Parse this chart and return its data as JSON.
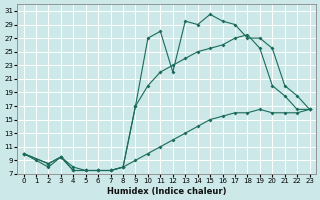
{
  "xlabel": "Humidex (Indice chaleur)",
  "bg_color": "#cce8e8",
  "grid_color": "#b0d8d8",
  "line_color": "#1a6b5a",
  "xlim": [
    -0.5,
    23.5
  ],
  "ylim": [
    7,
    32
  ],
  "yticks": [
    7,
    9,
    11,
    13,
    15,
    17,
    19,
    21,
    23,
    25,
    27,
    29,
    31
  ],
  "xticks": [
    0,
    1,
    2,
    3,
    4,
    5,
    6,
    7,
    8,
    9,
    10,
    11,
    12,
    13,
    14,
    15,
    16,
    17,
    18,
    19,
    20,
    21,
    22,
    23
  ],
  "line1_x": [
    0,
    1,
    2,
    3,
    4,
    5,
    6,
    7,
    8,
    9,
    10,
    11,
    12,
    13,
    14,
    15,
    16,
    17,
    18,
    19,
    20,
    21,
    22,
    23
  ],
  "line1_y": [
    10,
    9,
    8,
    9.5,
    8,
    7.5,
    7.5,
    7.5,
    8,
    17,
    27,
    28,
    22,
    29.5,
    29,
    30.5,
    29.5,
    29,
    27,
    27,
    25.5,
    20,
    18.5,
    16.5
  ],
  "line2_x": [
    0,
    2,
    3,
    4,
    5,
    6,
    7,
    8,
    9,
    10,
    11,
    12,
    13,
    14,
    15,
    16,
    17,
    18,
    19,
    20,
    21,
    22,
    23
  ],
  "line2_y": [
    10,
    8.5,
    9.5,
    7.5,
    7.5,
    7.5,
    7.5,
    8,
    9,
    10,
    11,
    12,
    13,
    14,
    15,
    15.5,
    16,
    16,
    16.5,
    16,
    16,
    16,
    16.5
  ],
  "line3_x": [
    0,
    2,
    3,
    4,
    5,
    6,
    7,
    8,
    9,
    10,
    11,
    12,
    13,
    14,
    15,
    16,
    17,
    18,
    19,
    20,
    21,
    22,
    23
  ],
  "line3_y": [
    10,
    8.5,
    9.5,
    7.5,
    7.5,
    7.5,
    7.5,
    8,
    17,
    20,
    22,
    23,
    24,
    25,
    25.5,
    26,
    27,
    27.5,
    25.5,
    20,
    18.5,
    16.5,
    16.5
  ]
}
